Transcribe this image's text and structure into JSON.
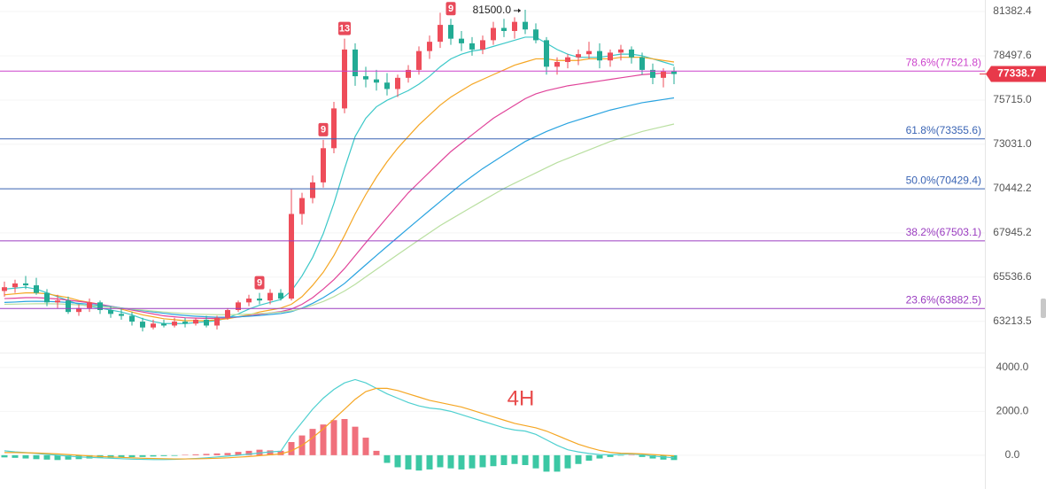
{
  "chart_data": [
    {
      "type": "candlestick",
      "open": [
        64800,
        65000,
        65200,
        65100,
        64700,
        64200,
        64300,
        63700,
        63900,
        64200,
        63800,
        63600,
        63500,
        63200,
        62900,
        63100,
        63000,
        63200,
        63100,
        63300,
        63000,
        63400,
        63800,
        64200,
        64400,
        64300,
        64700,
        64400,
        69000,
        69900,
        70800,
        72800,
        75200,
        78900,
        77200,
        77000,
        76800,
        76400,
        77100,
        77600,
        78800,
        79400,
        80500,
        79600,
        79300,
        78900,
        79500,
        80300,
        80100,
        80700,
        80200,
        79500,
        77800,
        78100,
        78400,
        78600,
        78800,
        78200,
        78700,
        78900,
        78400,
        77600,
        77100,
        77500
      ],
      "high": [
        65300,
        65400,
        65600,
        65500,
        64900,
        64600,
        64500,
        64100,
        64400,
        64300,
        64000,
        63900,
        63700,
        63400,
        63300,
        63300,
        63400,
        63400,
        63400,
        63500,
        63500,
        63900,
        64300,
        64600,
        64700,
        64900,
        64900,
        70400,
        70200,
        71200,
        73300,
        75600,
        79600,
        79300,
        77800,
        77600,
        77400,
        77300,
        77900,
        79100,
        79800,
        81300,
        80900,
        80100,
        79700,
        79800,
        80700,
        80900,
        81000,
        81500,
        80600,
        79700,
        78400,
        78600,
        78900,
        79400,
        79300,
        78900,
        79200,
        79100,
        78700,
        78000,
        77700,
        77800
      ],
      "low": [
        64500,
        64700,
        64900,
        64600,
        64000,
        63900,
        63600,
        63500,
        63700,
        63600,
        63400,
        63300,
        63000,
        62700,
        62800,
        62900,
        62900,
        62900,
        63000,
        62900,
        62800,
        63300,
        63700,
        64000,
        64100,
        64100,
        64300,
        64300,
        68400,
        69600,
        70500,
        72500,
        74900,
        76600,
        76500,
        76300,
        76000,
        75900,
        76800,
        77300,
        78300,
        79000,
        79200,
        78800,
        78500,
        78600,
        79200,
        79700,
        79600,
        79900,
        79300,
        77300,
        77300,
        77700,
        77900,
        78300,
        77700,
        77800,
        78200,
        78000,
        77300,
        76700,
        76500,
        76700
      ],
      "close": [
        65000,
        65200,
        65100,
        64700,
        64200,
        64300,
        63700,
        63900,
        64200,
        63800,
        63600,
        63500,
        63200,
        62900,
        63100,
        63000,
        63200,
        63100,
        63300,
        63000,
        63400,
        63800,
        64200,
        64400,
        64300,
        64700,
        64400,
        69000,
        69900,
        70800,
        72800,
        75200,
        78900,
        77200,
        77000,
        76800,
        76400,
        77100,
        77600,
        78800,
        79400,
        80500,
        79600,
        79300,
        78900,
        79500,
        80300,
        80100,
        80700,
        80200,
        79500,
        77800,
        78100,
        78400,
        78600,
        78800,
        78200,
        78700,
        78900,
        78400,
        77600,
        77100,
        77500,
        77338.7
      ],
      "up_color": "#ee4d5a",
      "down_color": "#22ab94",
      "log_scale": true,
      "ylim": [
        61760,
        82150
      ],
      "yticks": [
        81382.4,
        78497.6,
        {
          "value": 75715,
          "label": "75715.0"
        },
        {
          "value": 73031,
          "label": "73031.0"
        },
        70442.2,
        67945.2,
        65536.6,
        63213.5
      ],
      "overlays": [
        {
          "color": "#3cc8c8",
          "values": [
            64900,
            64950,
            65000,
            64900,
            64700,
            64500,
            64300,
            64100,
            64000,
            63900,
            63800,
            63700,
            63550,
            63350,
            63200,
            63100,
            63100,
            63100,
            63150,
            63200,
            63250,
            63400,
            63600,
            63850,
            64050,
            64200,
            64350,
            64800,
            65600,
            66600,
            67900,
            69600,
            71600,
            73500,
            74600,
            75300,
            75700,
            76000,
            76300,
            76700,
            77200,
            77800,
            78300,
            78600,
            78800,
            78900,
            79100,
            79300,
            79500,
            79700,
            79700,
            79300,
            78900,
            78600,
            78400,
            78400,
            78400,
            78500,
            78600,
            78600,
            78500,
            78300,
            78100,
            77900
          ]
        },
        {
          "color": "#f5a623",
          "values": [
            64600,
            64650,
            64700,
            64700,
            64650,
            64550,
            64450,
            64300,
            64200,
            64100,
            63950,
            63850,
            63700,
            63550,
            63450,
            63350,
            63300,
            63250,
            63250,
            63250,
            63300,
            63350,
            63450,
            63550,
            63700,
            63800,
            63900,
            64100,
            64500,
            65100,
            65800,
            66700,
            67800,
            69000,
            70100,
            71100,
            72000,
            72800,
            73500,
            74200,
            74800,
            75400,
            75900,
            76300,
            76700,
            77000,
            77300,
            77600,
            77900,
            78100,
            78300,
            78300,
            78200,
            78200,
            78200,
            78300,
            78300,
            78300,
            78400,
            78400,
            78400,
            78300,
            78200,
            78100
          ]
        },
        {
          "color": "#e0449a",
          "values": [
            64400,
            64420,
            64450,
            64450,
            64420,
            64380,
            64320,
            64250,
            64180,
            64100,
            64000,
            63900,
            63800,
            63700,
            63600,
            63500,
            63450,
            63400,
            63380,
            63370,
            63370,
            63400,
            63440,
            63500,
            63580,
            63650,
            63720,
            63850,
            64100,
            64450,
            64900,
            65400,
            66000,
            66700,
            67400,
            68100,
            68800,
            69500,
            70200,
            70800,
            71400,
            72000,
            72600,
            73100,
            73600,
            74100,
            74600,
            75000,
            75400,
            75800,
            76100,
            76300,
            76450,
            76600,
            76700,
            76800,
            76900,
            77000,
            77100,
            77200,
            77300,
            77350,
            77400,
            77400
          ]
        },
        {
          "color": "#29a3e0",
          "values": [
            64200,
            64220,
            64250,
            64260,
            64250,
            64230,
            64200,
            64150,
            64100,
            64040,
            63980,
            63910,
            63840,
            63770,
            63700,
            63630,
            63570,
            63520,
            63480,
            63450,
            63430,
            63430,
            63450,
            63480,
            63520,
            63570,
            63620,
            63720,
            63900,
            64150,
            64450,
            64800,
            65200,
            65700,
            66200,
            66700,
            67200,
            67700,
            68200,
            68700,
            69200,
            69700,
            70200,
            70700,
            71150,
            71600,
            72000,
            72400,
            72800,
            73200,
            73500,
            73800,
            74050,
            74300,
            74500,
            74700,
            74900,
            75100,
            75250,
            75400,
            75550,
            75650,
            75750,
            75850
          ]
        },
        {
          "color": "#b9dfa0",
          "values": [
            64100,
            64110,
            64120,
            64130,
            64130,
            64120,
            64100,
            64070,
            64030,
            63990,
            63950,
            63900,
            63850,
            63800,
            63750,
            63700,
            63660,
            63620,
            63590,
            63570,
            63560,
            63560,
            63570,
            63590,
            63620,
            63650,
            63690,
            63760,
            63880,
            64050,
            64250,
            64500,
            64800,
            65150,
            65550,
            65950,
            66350,
            66750,
            67150,
            67550,
            67950,
            68350,
            68700,
            69050,
            69400,
            69750,
            70100,
            70450,
            70750,
            71050,
            71350,
            71650,
            71950,
            72200,
            72450,
            72700,
            72950,
            73200,
            73400,
            73600,
            73800,
            73950,
            74100,
            74250
          ]
        }
      ],
      "fib_levels": [
        {
          "value": 77521.8,
          "label": "78.6%(77521.8)",
          "color": "#cc44cc"
        },
        {
          "value": 73355.6,
          "label": "61.8%(73355.6)",
          "color": "#3a64b4"
        },
        {
          "value": 70429.4,
          "label": "50.0%(70429.4)",
          "color": "#3a64b4"
        },
        {
          "value": 67503.1,
          "label": "38.2%(67503.1)",
          "color": "#9a3cc0"
        },
        {
          "value": 63882.5,
          "label": "23.6%(63882.5)",
          "color": "#9a3cc0"
        }
      ],
      "td_markers": [
        {
          "index": 24,
          "label": "9"
        },
        {
          "index": 30,
          "label": "9"
        },
        {
          "index": 32,
          "label": "13"
        },
        {
          "index": 42,
          "label": "9"
        }
      ],
      "max_marker": {
        "index": 49,
        "value": 81500,
        "label": "81500.0"
      }
    },
    {
      "type": "macd",
      "values": [
        -100,
        -120,
        -150,
        -180,
        -200,
        -220,
        -200,
        -180,
        -150,
        -130,
        -120,
        -100,
        -90,
        -80,
        -60,
        -40,
        -30,
        20,
        40,
        60,
        80,
        100,
        150,
        200,
        250,
        220,
        200,
        600,
        900,
        1200,
        1400,
        1600,
        1650,
        1300,
        800,
        200,
        -350,
        -550,
        -650,
        -700,
        -650,
        -550,
        -600,
        -650,
        -600,
        -550,
        -500,
        -450,
        -400,
        -450,
        -600,
        -750,
        -750,
        -600,
        -400,
        -250,
        -150,
        -80,
        -20,
        10,
        -80,
        -150,
        -200,
        -220
      ],
      "up_color": "#f0707c",
      "down_color": "#3cc8a4",
      "ylim": [
        -1400,
        4600
      ],
      "yticks": [
        {
          "value": 4000,
          "label": "4000.0"
        },
        {
          "value": 2000,
          "label": "2000.0"
        },
        {
          "value": 0,
          "label": "0.0"
        }
      ],
      "series": [
        {
          "color": "#4fd0d0",
          "values": [
            200,
            150,
            120,
            80,
            40,
            0,
            -40,
            -80,
            -100,
            -120,
            -140,
            -160,
            -180,
            -190,
            -200,
            -200,
            -190,
            -170,
            -150,
            -120,
            -80,
            -40,
            0,
            50,
            100,
            150,
            180,
            900,
            1500,
            2100,
            2600,
            3000,
            3300,
            3450,
            3300,
            3050,
            2800,
            2600,
            2400,
            2250,
            2150,
            2100,
            2000,
            1850,
            1700,
            1550,
            1400,
            1250,
            1150,
            1100,
            950,
            700,
            450,
            250,
            150,
            80,
            30,
            20,
            40,
            60,
            20,
            -40,
            -80,
            -120
          ]
        },
        {
          "color": "#f5a623",
          "values": [
            120,
            120,
            110,
            100,
            80,
            60,
            30,
            0,
            -30,
            -60,
            -80,
            -100,
            -120,
            -140,
            -150,
            -160,
            -170,
            -170,
            -165,
            -155,
            -140,
            -120,
            -90,
            -60,
            -20,
            20,
            60,
            200,
            450,
            800,
            1200,
            1650,
            2100,
            2550,
            2900,
            3050,
            3050,
            2950,
            2800,
            2650,
            2500,
            2400,
            2300,
            2200,
            2050,
            1900,
            1750,
            1600,
            1450,
            1350,
            1250,
            1100,
            900,
            700,
            500,
            350,
            220,
            130,
            90,
            80,
            60,
            30,
            0,
            -30
          ]
        }
      ],
      "annotation": "4H"
    }
  ]
}
